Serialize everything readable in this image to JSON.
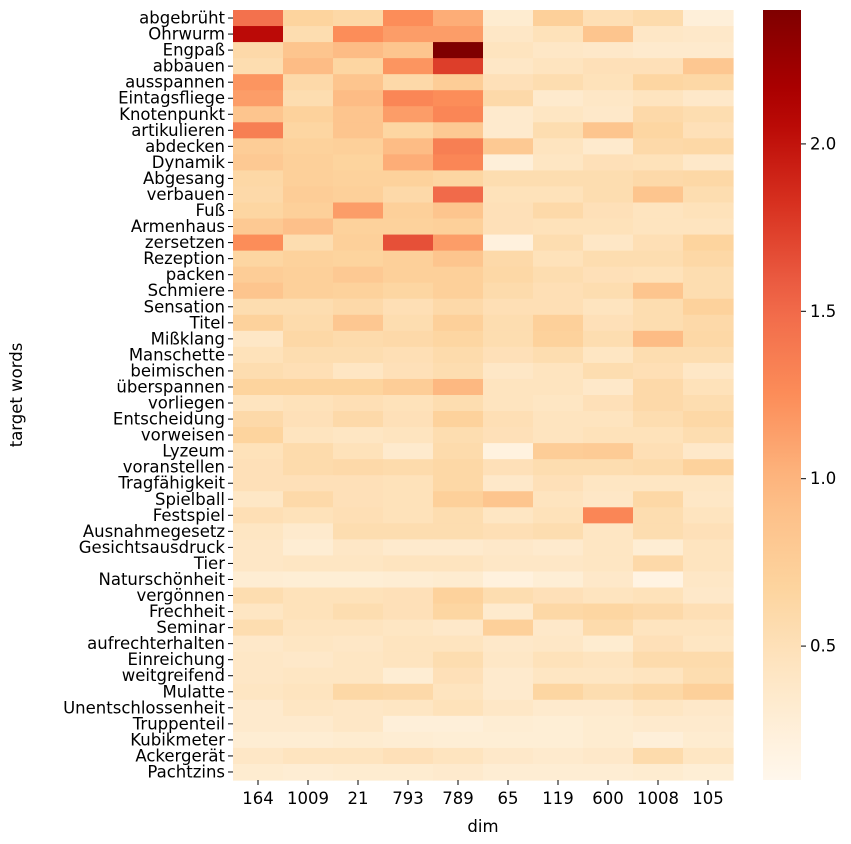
{
  "chart_data": {
    "type": "heatmap",
    "xlabel": "dim",
    "ylabel": "target words",
    "x_categories": [
      "164",
      "1009",
      "21",
      "793",
      "789",
      "65",
      "119",
      "600",
      "1008",
      "105"
    ],
    "y_categories": [
      "abgebrüht",
      "Ohrwurm",
      "Engpaß",
      "abbauen",
      "ausspannen",
      "Eintagsfliege",
      "Knotenpunkt",
      "artikulieren",
      "abdecken",
      "Dynamik",
      "Abgesang",
      "verbauen",
      "Fuß",
      "Armenhaus",
      "zersetzen",
      "Rezeption",
      "packen",
      "Schmiere",
      "Sensation",
      "Titel",
      "Mißklang",
      "Manschette",
      "beimischen",
      "überspannen",
      "vorliegen",
      "Entscheidung",
      "vorweisen",
      "Lyzeum",
      "voranstellen",
      "Tragfähigkeit",
      "Spielball",
      "Festspiel",
      "Ausnahmegesetz",
      "Gesichtsausdruck",
      "Tier",
      "Naturschönheit",
      "vergönnen",
      "Frechheit",
      "Seminar",
      "aufrechterhalten",
      "Einreichung",
      "weitgreifend",
      "Mulatte",
      "Unentschlossenheit",
      "Truppenteil",
      "Kubikmeter",
      "Ackergerät",
      "Pachtzins"
    ],
    "values": [
      [
        1.45,
        0.68,
        0.62,
        1.25,
        1.05,
        0.32,
        0.72,
        0.52,
        0.58,
        0.25
      ],
      [
        2.05,
        0.55,
        1.25,
        1.15,
        1.15,
        0.4,
        0.48,
        0.85,
        0.4,
        0.38
      ],
      [
        0.6,
        0.85,
        0.95,
        0.85,
        2.4,
        0.45,
        0.4,
        0.38,
        0.35,
        0.35
      ],
      [
        0.55,
        0.95,
        0.65,
        1.2,
        1.75,
        0.4,
        0.45,
        0.5,
        0.5,
        0.82
      ],
      [
        1.2,
        0.6,
        0.85,
        0.6,
        0.75,
        0.5,
        0.55,
        0.48,
        0.65,
        0.62
      ],
      [
        1.15,
        0.55,
        0.95,
        1.3,
        1.25,
        0.6,
        0.35,
        0.4,
        0.45,
        0.38
      ],
      [
        0.85,
        0.7,
        0.85,
        1.15,
        1.3,
        0.35,
        0.42,
        0.38,
        0.6,
        0.55
      ],
      [
        1.35,
        0.65,
        0.85,
        0.65,
        0.8,
        0.35,
        0.55,
        0.85,
        0.65,
        0.5
      ],
      [
        0.75,
        0.7,
        0.72,
        0.95,
        1.35,
        0.8,
        0.45,
        0.35,
        0.6,
        0.62
      ],
      [
        0.8,
        0.72,
        0.68,
        1.05,
        1.3,
        0.25,
        0.42,
        0.5,
        0.48,
        0.38
      ],
      [
        0.62,
        0.72,
        0.7,
        0.7,
        0.65,
        0.55,
        0.55,
        0.55,
        0.6,
        0.62
      ],
      [
        0.6,
        0.75,
        0.72,
        0.6,
        1.5,
        0.48,
        0.48,
        0.55,
        0.85,
        0.55
      ],
      [
        0.65,
        0.72,
        1.15,
        0.72,
        0.85,
        0.5,
        0.6,
        0.5,
        0.45,
        0.48
      ],
      [
        0.8,
        0.9,
        0.7,
        0.7,
        0.72,
        0.5,
        0.48,
        0.48,
        0.45,
        0.45
      ],
      [
        1.25,
        0.55,
        0.72,
        1.65,
        1.15,
        0.22,
        0.55,
        0.4,
        0.52,
        0.68
      ],
      [
        0.65,
        0.7,
        0.68,
        0.72,
        0.85,
        0.6,
        0.48,
        0.55,
        0.55,
        0.62
      ],
      [
        0.75,
        0.72,
        0.8,
        0.72,
        0.72,
        0.62,
        0.55,
        0.5,
        0.48,
        0.55
      ],
      [
        0.85,
        0.72,
        0.7,
        0.65,
        0.72,
        0.58,
        0.52,
        0.55,
        0.85,
        0.55
      ],
      [
        0.55,
        0.55,
        0.6,
        0.52,
        0.6,
        0.52,
        0.52,
        0.45,
        0.55,
        0.7
      ],
      [
        0.7,
        0.58,
        0.82,
        0.55,
        0.72,
        0.55,
        0.72,
        0.5,
        0.55,
        0.6
      ],
      [
        0.4,
        0.62,
        0.58,
        0.6,
        0.65,
        0.55,
        0.7,
        0.55,
        0.95,
        0.62
      ],
      [
        0.48,
        0.55,
        0.55,
        0.52,
        0.58,
        0.5,
        0.55,
        0.42,
        0.55,
        0.55
      ],
      [
        0.55,
        0.52,
        0.42,
        0.5,
        0.55,
        0.4,
        0.45,
        0.55,
        0.52,
        0.4
      ],
      [
        0.68,
        0.68,
        0.68,
        0.75,
        0.98,
        0.45,
        0.45,
        0.38,
        0.6,
        0.48
      ],
      [
        0.45,
        0.48,
        0.52,
        0.48,
        0.55,
        0.45,
        0.42,
        0.5,
        0.6,
        0.55
      ],
      [
        0.6,
        0.5,
        0.6,
        0.5,
        0.7,
        0.52,
        0.45,
        0.45,
        0.55,
        0.62
      ],
      [
        0.68,
        0.45,
        0.42,
        0.45,
        0.55,
        0.5,
        0.45,
        0.48,
        0.48,
        0.55
      ],
      [
        0.48,
        0.58,
        0.48,
        0.35,
        0.58,
        0.2,
        0.75,
        0.78,
        0.52,
        0.38
      ],
      [
        0.5,
        0.58,
        0.6,
        0.58,
        0.62,
        0.5,
        0.55,
        0.55,
        0.58,
        0.7
      ],
      [
        0.5,
        0.5,
        0.5,
        0.48,
        0.62,
        0.38,
        0.5,
        0.42,
        0.42,
        0.42
      ],
      [
        0.4,
        0.6,
        0.5,
        0.48,
        0.72,
        0.85,
        0.45,
        0.4,
        0.62,
        0.4
      ],
      [
        0.52,
        0.48,
        0.52,
        0.48,
        0.55,
        0.42,
        0.48,
        1.3,
        0.55,
        0.45
      ],
      [
        0.42,
        0.35,
        0.55,
        0.55,
        0.55,
        0.52,
        0.55,
        0.42,
        0.55,
        0.5
      ],
      [
        0.4,
        0.3,
        0.4,
        0.35,
        0.35,
        0.38,
        0.35,
        0.42,
        0.3,
        0.45
      ],
      [
        0.4,
        0.42,
        0.42,
        0.45,
        0.45,
        0.4,
        0.4,
        0.42,
        0.6,
        0.45
      ],
      [
        0.3,
        0.28,
        0.28,
        0.3,
        0.32,
        0.22,
        0.28,
        0.38,
        0.18,
        0.4
      ],
      [
        0.55,
        0.48,
        0.48,
        0.5,
        0.7,
        0.55,
        0.5,
        0.45,
        0.48,
        0.38
      ],
      [
        0.42,
        0.48,
        0.55,
        0.5,
        0.65,
        0.35,
        0.62,
        0.65,
        0.6,
        0.52
      ],
      [
        0.55,
        0.45,
        0.45,
        0.42,
        0.38,
        0.72,
        0.38,
        0.58,
        0.45,
        0.45
      ],
      [
        0.38,
        0.42,
        0.4,
        0.45,
        0.45,
        0.38,
        0.4,
        0.32,
        0.5,
        0.42
      ],
      [
        0.4,
        0.38,
        0.42,
        0.45,
        0.55,
        0.4,
        0.48,
        0.45,
        0.58,
        0.58
      ],
      [
        0.4,
        0.42,
        0.42,
        0.3,
        0.5,
        0.35,
        0.42,
        0.42,
        0.45,
        0.55
      ],
      [
        0.42,
        0.45,
        0.62,
        0.6,
        0.45,
        0.35,
        0.65,
        0.55,
        0.62,
        0.72
      ],
      [
        0.35,
        0.42,
        0.4,
        0.42,
        0.48,
        0.4,
        0.35,
        0.35,
        0.42,
        0.38
      ],
      [
        0.35,
        0.35,
        0.4,
        0.25,
        0.25,
        0.3,
        0.28,
        0.32,
        0.35,
        0.35
      ],
      [
        0.3,
        0.3,
        0.32,
        0.3,
        0.28,
        0.28,
        0.28,
        0.32,
        0.25,
        0.32
      ],
      [
        0.4,
        0.45,
        0.45,
        0.5,
        0.45,
        0.38,
        0.35,
        0.38,
        0.58,
        0.42
      ],
      [
        0.32,
        0.3,
        0.32,
        0.32,
        0.35,
        0.3,
        0.3,
        0.3,
        0.32,
        0.28
      ]
    ],
    "colormap": "OrRd",
    "vmin": 0.1,
    "vmax": 2.4,
    "colorbar": {
      "ticks": [
        0.5,
        1.0,
        1.5,
        2.0
      ],
      "tick_labels": [
        "0.5",
        "1.0",
        "1.5",
        "2.0"
      ]
    }
  }
}
